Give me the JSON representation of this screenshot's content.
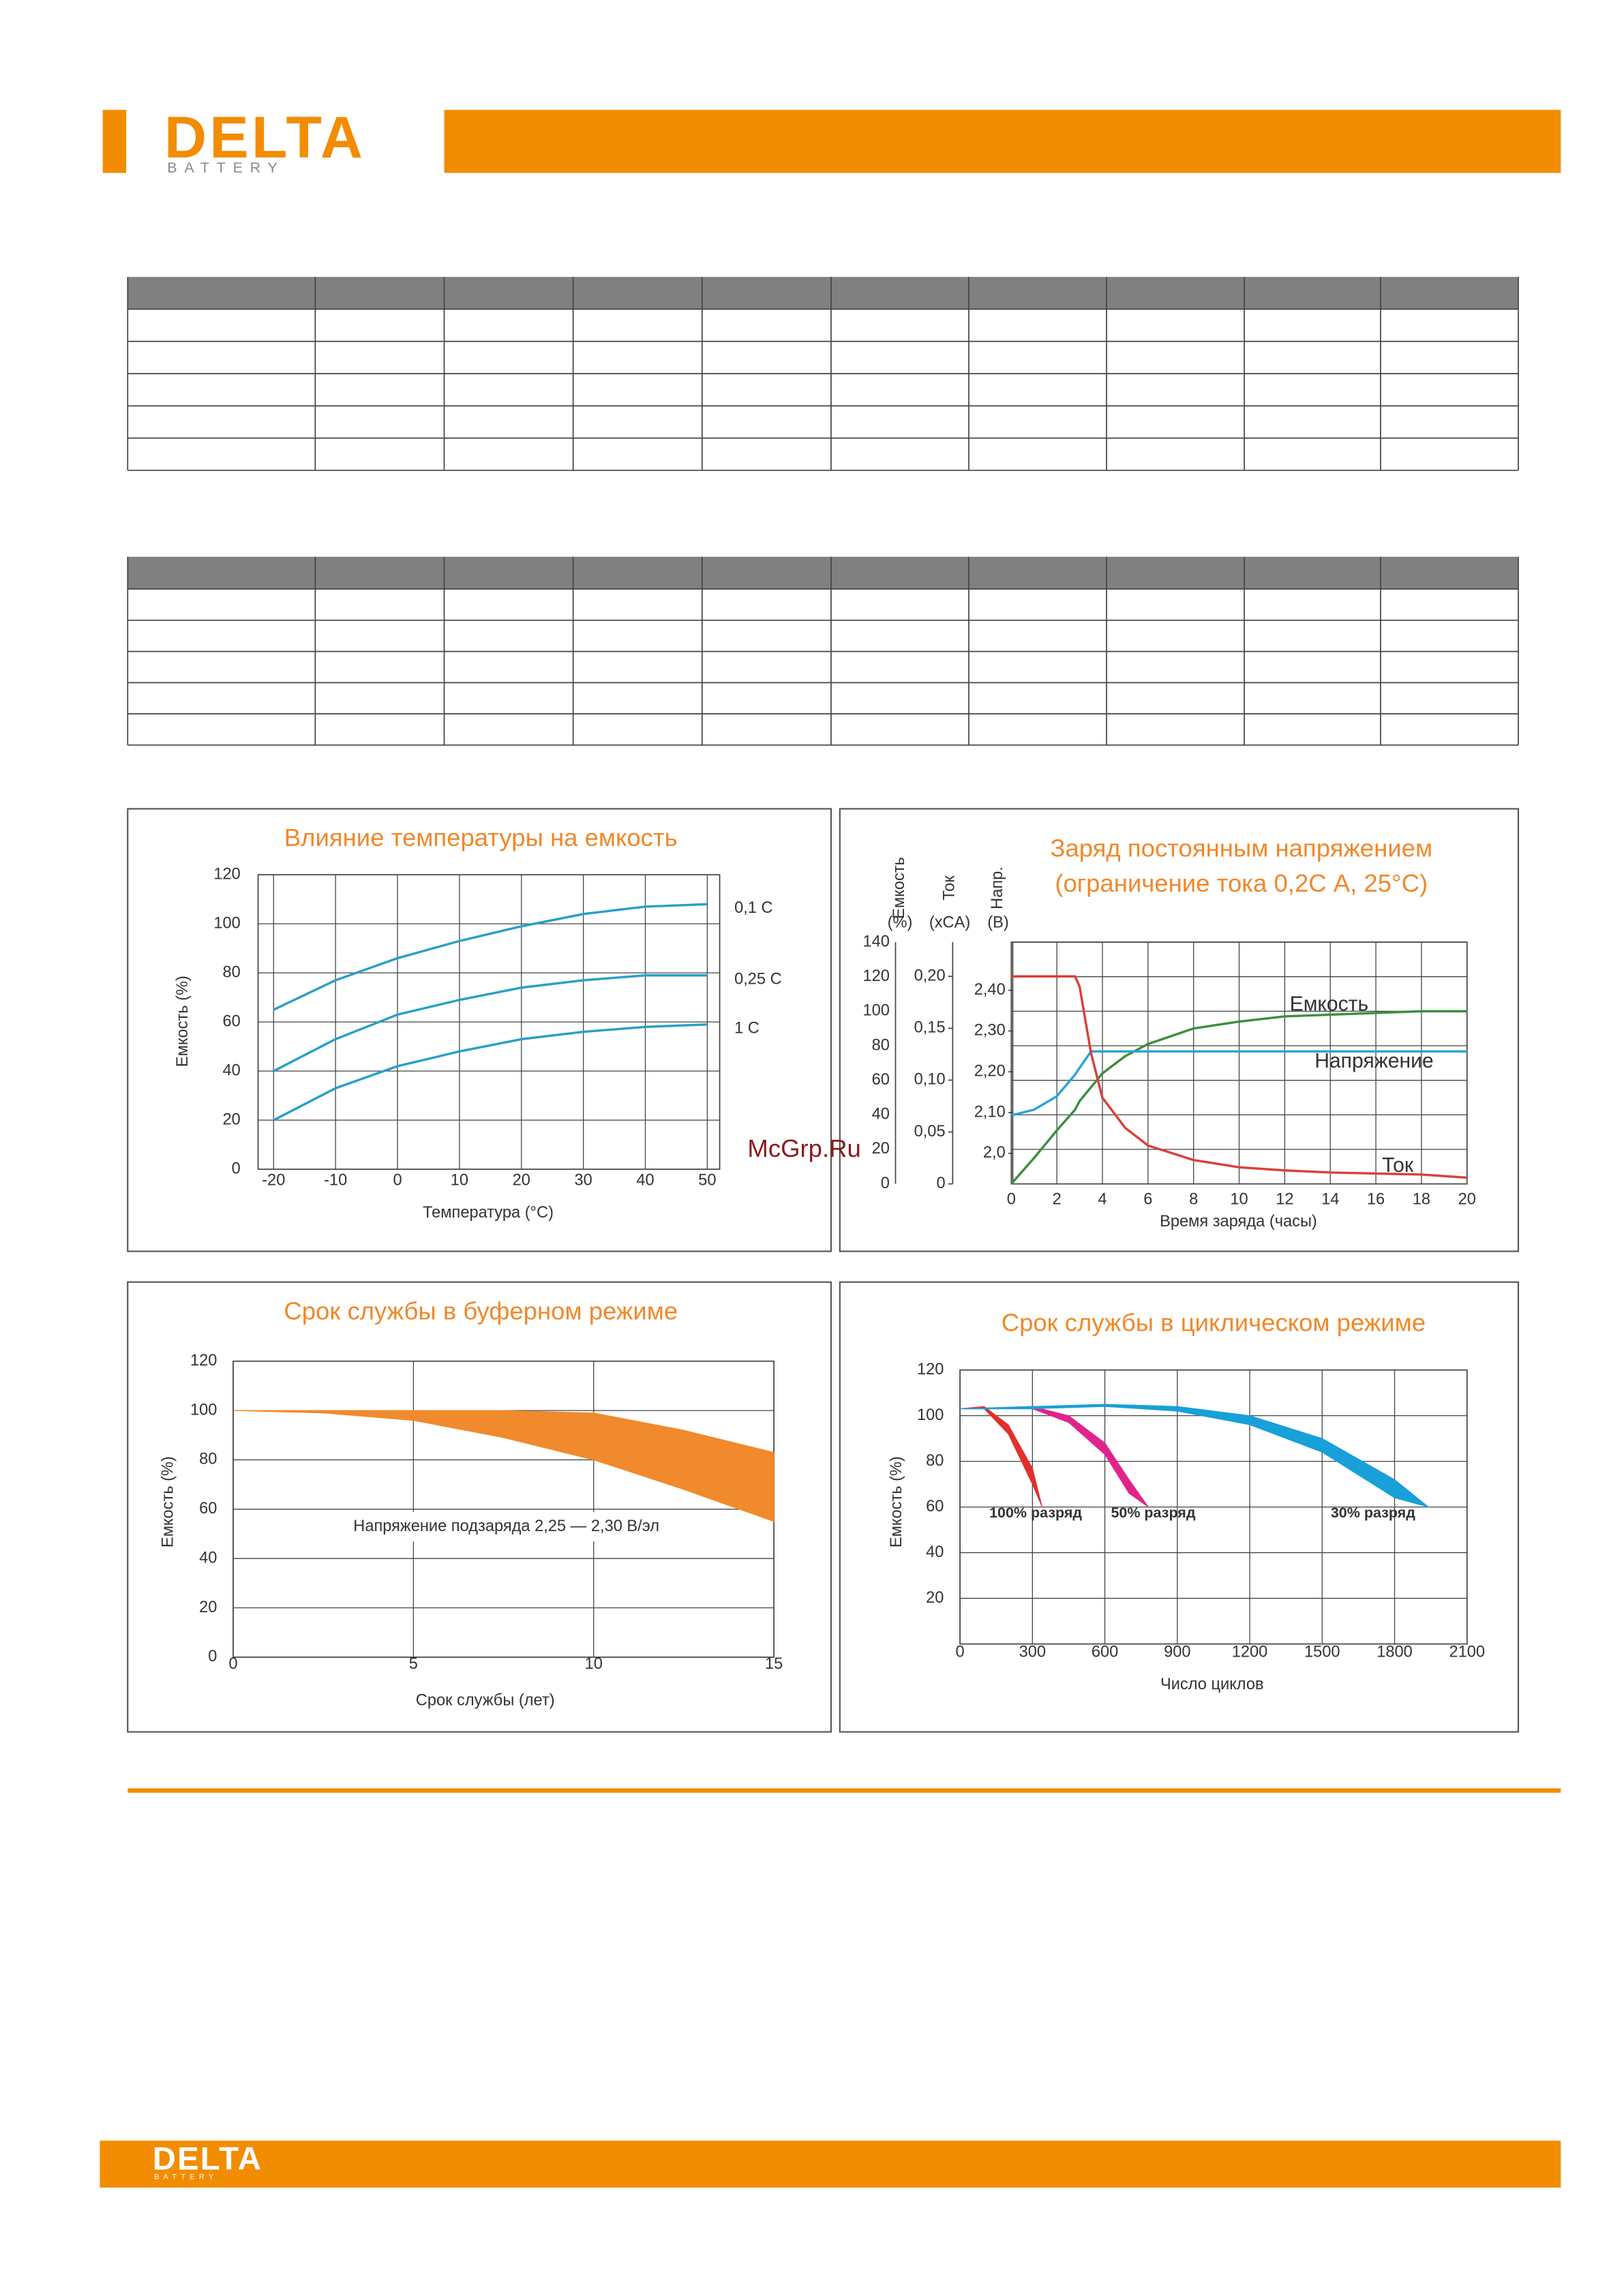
{
  "header": {
    "logo": {
      "name": "DELTA",
      "sub": "BATTERY"
    }
  },
  "watermark": "McGrp.Ru",
  "chart_data": [
    {
      "type": "line",
      "title": "Влияние температуры на емкость",
      "xlabel": "Температура (°С)",
      "ylabel": "Емкость (%)",
      "x": [
        -20,
        -10,
        0,
        10,
        20,
        30,
        40,
        50
      ],
      "xlim": [
        -22.5,
        52
      ],
      "xticks": [
        -20,
        -10,
        0,
        10,
        20,
        30,
        40,
        50
      ],
      "ylim": [
        0,
        120
      ],
      "yticks": [
        0,
        20,
        40,
        60,
        80,
        100,
        120
      ],
      "grid": true,
      "series": [
        {
          "name": "0,1 C",
          "color": "#2a9fc6",
          "values": [
            65,
            77,
            86,
            93,
            99,
            104,
            107,
            108
          ]
        },
        {
          "name": "0,25 C",
          "color": "#2a9fc6",
          "values": [
            40,
            53,
            63,
            69,
            74,
            77,
            79,
            79
          ]
        },
        {
          "name": "1 C",
          "color": "#2a9fc6",
          "values": [
            20,
            33,
            42,
            48,
            53,
            56,
            58,
            59
          ]
        }
      ]
    },
    {
      "type": "line",
      "title": [
        "Заряд постоянным напряжением",
        "(ограничение тока 0,2С А, 25°С)"
      ],
      "xlabel": "Время заряда (часы)",
      "ylabel": "Емкость",
      "yunit": "(%)",
      "y2label": "Ток",
      "y2unit": "(xCA)",
      "y3label": "Напр.",
      "y3unit": "(В)",
      "x": [
        0,
        1,
        2,
        2.8,
        3,
        3.5,
        4,
        5,
        6,
        8,
        10,
        12,
        14,
        16,
        18,
        20
      ],
      "xlim": [
        0,
        20
      ],
      "xticks": [
        0,
        2,
        4,
        6,
        8,
        10,
        12,
        14,
        16,
        18,
        20
      ],
      "ylim": [
        0,
        140
      ],
      "yticks": [
        0,
        20,
        40,
        60,
        80,
        100,
        120,
        140
      ],
      "y2lim": [
        0,
        0.233
      ],
      "y2ticks": [
        0,
        {
          "value": 0.05,
          "label": "0,05"
        },
        {
          "value": 0.1,
          "label": "0,10"
        },
        {
          "value": 0.15,
          "label": "0,15"
        },
        {
          "value": 0.2,
          "label": "0,20"
        }
      ],
      "y3lim": [
        1.925,
        2.518
      ],
      "y3ticks": [
        {
          "value": 2.0,
          "label": "2,0"
        },
        {
          "value": 2.1,
          "label": "2,10"
        },
        {
          "value": 2.2,
          "label": "2,20"
        },
        {
          "value": 2.3,
          "label": "2,30"
        },
        {
          "value": 2.4,
          "label": "2,40"
        }
      ],
      "grid": true,
      "series": [
        {
          "name": "Емкость",
          "color": "#3a8f3a",
          "values": [
            0,
            15,
            31,
            43,
            48,
            56,
            64,
            74,
            81,
            90,
            94,
            97,
            98,
            99,
            100,
            100
          ]
        },
        {
          "name": "Напряжение",
          "color": "#2aa4d4",
          "axis": "y3",
          "values": [
            2.093,
            2.107,
            2.14,
            2.193,
            2.21,
            2.25,
            2.25,
            2.25,
            2.25,
            2.25,
            2.25,
            2.25,
            2.25,
            2.25,
            2.25,
            2.25
          ]
        },
        {
          "name": "Ток",
          "color": "#d9403a",
          "axis": "y2",
          "values": [
            0.2,
            0.2,
            0.2,
            0.2,
            0.19,
            0.126,
            0.083,
            0.054,
            0.037,
            0.023,
            0.016,
            0.013,
            0.011,
            0.01,
            0.009,
            0.006
          ]
        }
      ]
    },
    {
      "type": "band",
      "title": "Срок службы в буферном режиме",
      "xlabel": "Срок службы (лет)",
      "ylabel": "Емкость (%)",
      "annotation": "Напряжение подзаряда 2,25 — 2,30 В/эл",
      "x": [
        0,
        2.5,
        5,
        7.5,
        10,
        12.5,
        15
      ],
      "xlim": [
        0,
        15
      ],
      "xticks": [
        0,
        5,
        10,
        15
      ],
      "ylim": [
        0,
        120
      ],
      "yticks": [
        0,
        20,
        40,
        60,
        80,
        100,
        120
      ],
      "grid": true,
      "series": [
        {
          "color": "#f08a2c",
          "upper": [
            100,
            100,
            100,
            100,
            99,
            92,
            83
          ],
          "lower": [
            100,
            99,
            96,
            89,
            80,
            68,
            55
          ]
        }
      ]
    },
    {
      "type": "band",
      "title": "Срок службы в циклическом режиме",
      "xlabel": "Число циклов",
      "ylabel": "Емкость (%)",
      "xlim": [
        0,
        2100
      ],
      "xticks": [
        0,
        300,
        600,
        900,
        1200,
        1500,
        1800,
        2100
      ],
      "ylim": [
        0,
        120
      ],
      "yticks": [
        20,
        40,
        60,
        80,
        100,
        120
      ],
      "grid": true,
      "series": [
        {
          "name": "100% разряд",
          "color": "#e0302c",
          "x": [
            0,
            100,
            200,
            300,
            340
          ],
          "upper": [
            103,
            104,
            96,
            77,
            60
          ],
          "lower": [
            103,
            103,
            92,
            70,
            60
          ]
        },
        {
          "name": "50% разряд",
          "color": "#e0248c",
          "x": [
            0,
            300,
            450,
            600,
            700,
            780
          ],
          "upper": [
            103,
            104,
            100,
            88,
            72,
            60
          ],
          "lower": [
            103,
            103,
            97,
            83,
            66,
            60
          ]
        },
        {
          "name": "30% разряд",
          "color": "#18a0d8",
          "x": [
            0,
            300,
            600,
            900,
            1200,
            1500,
            1800,
            1940
          ],
          "upper": [
            103,
            104,
            105,
            104,
            100,
            90,
            72,
            60
          ],
          "lower": [
            103,
            103,
            104,
            102,
            96,
            84,
            64,
            60
          ]
        }
      ]
    }
  ]
}
